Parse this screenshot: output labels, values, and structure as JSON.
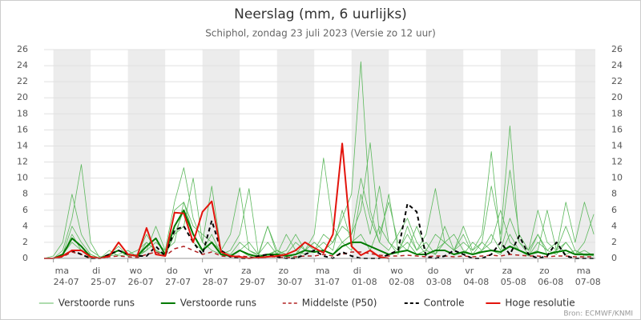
{
  "chart_data": {
    "type": "line",
    "title": "Neerslag (mm, 6 uurlijks)",
    "subtitle": "Schiphol, zondag 23 juli 2023 (Versie zo 12 uur)",
    "source": "Bron: ECMWF/KNMI",
    "x": [
      -6,
      0,
      6,
      12,
      18,
      24,
      30,
      36,
      42,
      48,
      54,
      60,
      66,
      72,
      78,
      84,
      90,
      96,
      102,
      108,
      114,
      120,
      126,
      132,
      138,
      144,
      150,
      156,
      162,
      168,
      174,
      180,
      186,
      192,
      198,
      204,
      210,
      216,
      222,
      228,
      234,
      240,
      246,
      252,
      258,
      264,
      270,
      276,
      282,
      288,
      294,
      300,
      306,
      312,
      318,
      324,
      330,
      336,
      342,
      348
    ],
    "xlim": [
      -6,
      349
    ],
    "xticks": [
      {
        "value": 0,
        "label": "24-07"
      },
      {
        "value": 24,
        "label": "25-07"
      },
      {
        "value": 48,
        "label": "26-07"
      },
      {
        "value": 72,
        "label": "27-07"
      },
      {
        "value": 96,
        "label": "28-07"
      },
      {
        "value": 120,
        "label": "29-07"
      },
      {
        "value": 144,
        "label": "30-07"
      },
      {
        "value": 168,
        "label": "31-07"
      },
      {
        "value": 192,
        "label": "01-08"
      },
      {
        "value": 216,
        "label": "02-08"
      },
      {
        "value": 240,
        "label": "03-08"
      },
      {
        "value": 264,
        "label": "04-08"
      },
      {
        "value": 288,
        "label": "05-08"
      },
      {
        "value": 312,
        "label": "06-08"
      },
      {
        "value": 336,
        "label": "07-08"
      }
    ],
    "xtick_days": [
      "ma",
      "di",
      "wo",
      "do",
      "vr",
      "za",
      "zo",
      "ma",
      "di",
      "wo",
      "do",
      "vr",
      "za",
      "zo",
      "ma"
    ],
    "ylim": [
      0,
      26
    ],
    "yticks": [
      0,
      2,
      4,
      6,
      8,
      10,
      12,
      14,
      16,
      18,
      20,
      22,
      24,
      26
    ],
    "grid": true,
    "series": [
      {
        "name": "Verstoorde runs",
        "color": "#5cb85c",
        "width": 0.8,
        "dash": false,
        "values": [
          0,
          0,
          0.5,
          2,
          1,
          0,
          0,
          0.3,
          0.5,
          1,
          0.2,
          2,
          1,
          0.3,
          3,
          6,
          2,
          1,
          3,
          0.5,
          0.2,
          1,
          0.3,
          0,
          0.5,
          1,
          0.2,
          0.5,
          2,
          1,
          3,
          2,
          5,
          8,
          24.5,
          6,
          2,
          1,
          3,
          5,
          2,
          0.5,
          1,
          2,
          3,
          1,
          0.5,
          2,
          1,
          0.5,
          3,
          1,
          0.3,
          2,
          1,
          0.5,
          2,
          0.5,
          1,
          0.3
        ]
      },
      {
        "name": "Verstoorde runs",
        "color": "#5cb85c",
        "width": 0.8,
        "dash": false,
        "values": [
          0,
          0,
          1,
          5,
          11.7,
          2,
          0,
          0.5,
          1,
          0.3,
          0.5,
          1,
          4,
          1,
          2,
          7,
          3,
          1,
          2,
          0.5,
          1,
          3,
          8.7,
          0.5,
          0.3,
          1,
          0.5,
          0,
          1,
          2,
          1,
          0.5,
          2,
          3,
          6,
          14.4,
          3,
          7,
          2,
          1,
          4,
          1,
          0.5,
          2,
          1,
          3,
          0.5,
          1,
          2,
          6,
          2,
          1,
          0.5,
          3,
          1,
          2,
          0.5,
          1,
          0.3,
          0.5
        ]
      },
      {
        "name": "Verstoorde runs",
        "color": "#5cb85c",
        "width": 0.8,
        "dash": false,
        "values": [
          0,
          0.3,
          2,
          8,
          3,
          1,
          0.2,
          0.3,
          1,
          0.5,
          1,
          2,
          1,
          0.5,
          3,
          4,
          10,
          2,
          1,
          0.5,
          0.3,
          1,
          2,
          0.5,
          4,
          1,
          0.5,
          2,
          1,
          3,
          12.5,
          4,
          2,
          1,
          8,
          3,
          9,
          2,
          1,
          2,
          0.5,
          1,
          3,
          2,
          1,
          4,
          1,
          2,
          9,
          3,
          16.5,
          2,
          1,
          3,
          0.5,
          1,
          4,
          1,
          0.5,
          0.3
        ]
      },
      {
        "name": "Verstoorde runs",
        "color": "#5cb85c",
        "width": 0.8,
        "dash": false,
        "values": [
          0,
          0,
          0.5,
          4,
          2,
          0.5,
          0,
          1,
          0.3,
          0.5,
          0.2,
          1,
          2,
          1,
          7,
          11.3,
          5,
          2,
          9,
          1,
          0.5,
          2,
          1,
          0.3,
          4,
          0.5,
          1,
          3,
          1,
          2,
          1,
          2,
          4,
          3,
          10,
          5,
          2,
          8,
          1,
          3,
          1,
          2,
          0.5,
          4,
          1,
          2,
          1,
          3,
          13.3,
          2,
          11,
          3,
          1,
          6,
          2,
          1,
          7,
          2,
          7,
          3
        ]
      },
      {
        "name": "Verstoorde runs",
        "color": "#5cb85c",
        "width": 0.8,
        "dash": false,
        "values": [
          0,
          0,
          0.3,
          3,
          1,
          0.5,
          0,
          0.5,
          1.5,
          0.3,
          0.5,
          3,
          1,
          0.5,
          6,
          7,
          4,
          3,
          2,
          1,
          3,
          8.8,
          1,
          0.5,
          2,
          0.5,
          3,
          1,
          0.5,
          1,
          2,
          1,
          6,
          2,
          3,
          1,
          4,
          2,
          0.5,
          4,
          1,
          3,
          8.7,
          2,
          1,
          0.5,
          2,
          1,
          3,
          1,
          5,
          2,
          0.5,
          1,
          6,
          1,
          2,
          0.5,
          2,
          5.5
        ]
      },
      {
        "name": "Verstoorde runs",
        "color": "#007a00",
        "width": 2,
        "dash": false,
        "values": [
          0,
          0,
          0.5,
          2.5,
          1.5,
          0.2,
          0,
          0.5,
          1,
          0.5,
          0.3,
          1.5,
          2.5,
          0.5,
          4,
          6,
          3,
          1,
          2,
          0.5,
          0.3,
          1,
          0.5,
          0.2,
          0.5,
          0.5,
          0.3,
          0.5,
          1,
          0.8,
          1,
          0.5,
          1.5,
          2,
          2,
          1.5,
          1,
          0.5,
          0.8,
          1,
          0.5,
          0.5,
          1,
          1,
          0.5,
          0.8,
          0.5,
          0.8,
          1,
          0.8,
          1.5,
          1,
          0.5,
          0.8,
          0.5,
          0.8,
          1,
          0.5,
          0.5,
          0.5
        ]
      },
      {
        "name": "Middelste (P50)",
        "color": "#b22222",
        "width": 1.5,
        "dash": true,
        "values": [
          0,
          0,
          0.2,
          0.8,
          0.5,
          0,
          0,
          0.2,
          0.3,
          0.2,
          0.1,
          0.5,
          0.8,
          0.3,
          1.2,
          1.5,
          1,
          0.5,
          0.8,
          0.3,
          0.2,
          0.3,
          0.2,
          0,
          0.2,
          0.2,
          0.1,
          0.2,
          0.3,
          0.3,
          0.5,
          0.3,
          0.5,
          0.8,
          0.8,
          0.6,
          0.4,
          0.3,
          0.3,
          0.4,
          0.3,
          0.2,
          0.3,
          0.3,
          0.2,
          0.3,
          0.2,
          0.3,
          0.4,
          0.3,
          0.5,
          0.4,
          0.3,
          0.3,
          0.2,
          0.3,
          0.3,
          0.2,
          0.2,
          0.2
        ]
      },
      {
        "name": "Controle",
        "color": "#000000",
        "width": 2,
        "dash": true,
        "values": [
          0,
          0,
          0.3,
          1,
          0.5,
          0,
          0,
          0.5,
          1,
          0.5,
          0.3,
          0.3,
          1.5,
          0.3,
          3.5,
          4,
          2,
          0.5,
          4.7,
          1,
          0.2,
          0,
          0,
          0.3,
          0.5,
          0.2,
          0,
          0,
          0.5,
          1,
          0.3,
          0,
          0.8,
          0.3,
          0,
          0,
          0,
          0.5,
          1,
          6.8,
          5.8,
          0.2,
          0,
          0.3,
          1,
          0.5,
          0,
          0,
          0.5,
          2,
          0.5,
          2.8,
          0.5,
          0,
          0.3,
          2,
          0.3,
          0,
          0,
          0
        ]
      },
      {
        "name": "Hoge resolutie",
        "color": "#e3140c",
        "width": 2,
        "dash": false,
        "values": [
          0,
          0,
          0.3,
          1,
          1,
          0.2,
          0,
          0.3,
          2,
          0.5,
          0.3,
          3.8,
          0.5,
          0.3,
          5.7,
          5.6,
          2,
          5.8,
          7.1,
          0.8,
          0.3,
          0.2,
          0,
          0.1,
          0.2,
          0.3,
          0.5,
          1,
          2,
          1.3,
          0.7,
          3,
          14.3,
          1.5,
          0.4,
          1,
          0.2,
          0,
          null,
          null,
          null,
          null,
          null,
          null,
          null,
          null,
          null,
          null,
          null,
          null,
          null,
          null,
          null,
          null,
          null,
          null,
          null,
          null,
          null,
          null
        ]
      }
    ]
  }
}
